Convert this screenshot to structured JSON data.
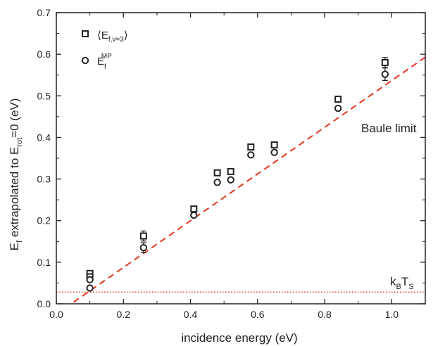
{
  "chart_data": {
    "type": "scatter",
    "xlabel": "incidence energy (eV)",
    "ylabel_main": "E",
    "ylabel_sub1": "f",
    "ylabel_mid": " extrapolated to E",
    "ylabel_sub2": "rot",
    "ylabel_tail": "=0 (eV)",
    "xlim": [
      0.0,
      1.1
    ],
    "ylim": [
      0.0,
      0.7
    ],
    "xticks": [
      0.0,
      0.2,
      0.4,
      0.6,
      0.8,
      1.0
    ],
    "xtick_labels": [
      "0.0",
      "0.2",
      "0.4",
      "0.6",
      "0.8",
      "1.0"
    ],
    "yticks": [
      0.0,
      0.1,
      0.2,
      0.3,
      0.4,
      0.5,
      0.6,
      0.7
    ],
    "ytick_labels": [
      "0.0",
      "0.1",
      "0.2",
      "0.3",
      "0.4",
      "0.5",
      "0.6",
      "0.7"
    ],
    "grid": false,
    "legend_placement": "top-left",
    "series": [
      {
        "name": "⟨E_f,v=3⟩",
        "marker": "square",
        "x": [
          0.1,
          0.1,
          0.26,
          0.41,
          0.48,
          0.52,
          0.58,
          0.65,
          0.84,
          0.98
        ],
        "y": [
          0.073,
          0.065,
          0.163,
          0.228,
          0.315,
          0.318,
          0.377,
          0.382,
          0.492,
          0.58
        ],
        "err": [
          0.0,
          0.0,
          0.012,
          0.0,
          0.0,
          0.0,
          0.0,
          0.0,
          0.0,
          0.012
        ]
      },
      {
        "name": "E_f^MP",
        "marker": "circle",
        "x": [
          0.1,
          0.1,
          0.26,
          0.41,
          0.48,
          0.52,
          0.58,
          0.65,
          0.84,
          0.98
        ],
        "y": [
          0.058,
          0.038,
          0.135,
          0.213,
          0.292,
          0.298,
          0.358,
          0.364,
          0.47,
          0.552
        ],
        "err": [
          0.0,
          0.0,
          0.012,
          0.0,
          0.0,
          0.0,
          0.0,
          0.0,
          0.0,
          0.015
        ]
      }
    ],
    "lines": [
      {
        "name": "Baule limit",
        "style": "dashed",
        "color": "#e8351c",
        "x": [
          0.0,
          1.1
        ],
        "y": [
          -0.025,
          0.593
        ]
      },
      {
        "name": "kBTS",
        "style": "dotted",
        "color": "#e8351c",
        "x": [
          0.0,
          1.1
        ],
        "y": [
          0.028,
          0.028
        ]
      }
    ],
    "annotations": {
      "baule": "Baule limit",
      "kbts_k": "k",
      "kbts_ksub": "B",
      "kbts_t": "T",
      "kbts_tsub": "S"
    },
    "legend": {
      "square_main": "⟨E",
      "square_sub": "f,v=3",
      "square_close": "⟩",
      "circle_main": "E",
      "circle_sub": "f",
      "circle_sup": "MP"
    },
    "colors": {
      "data": "#222222",
      "line": "#e8351c"
    }
  }
}
